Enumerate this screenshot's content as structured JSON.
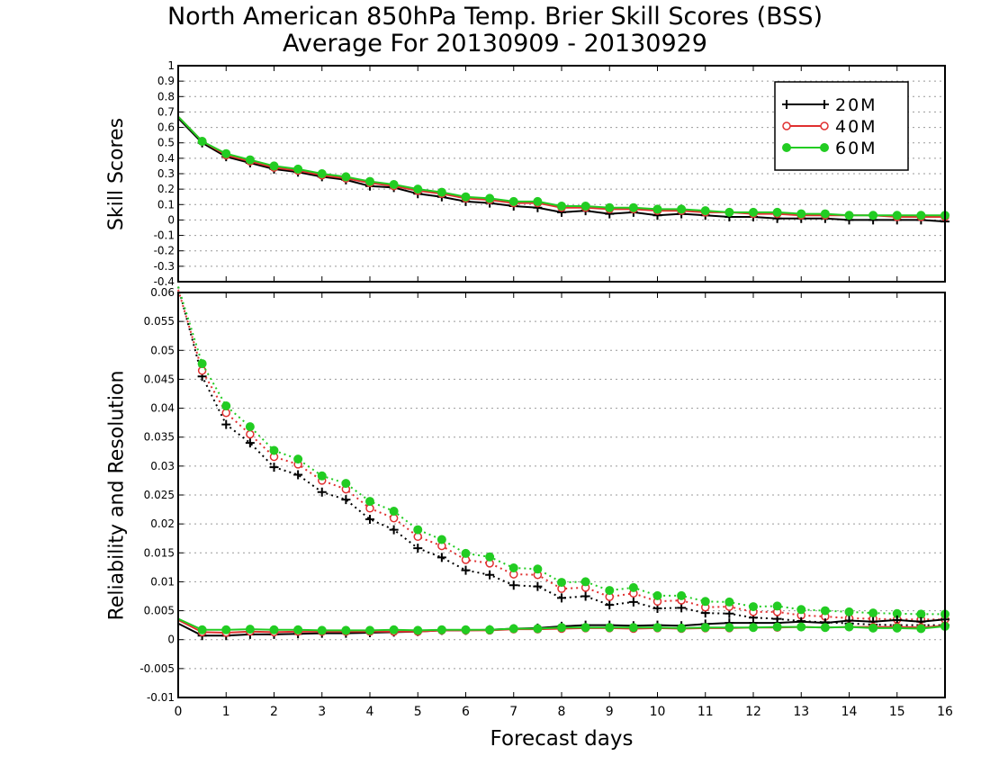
{
  "title": {
    "line1": "North American 850hPa Temp. Brier Skill Scores (BSS)",
    "line2": "Average For 20130909 - 20130929"
  },
  "xlabel": "Forecast days",
  "colors": {
    "20M": "#000000",
    "40M": "#e03030",
    "60M": "#22cc22",
    "grid": "#999999"
  },
  "chart_data": [
    {
      "type": "line",
      "ylabel": "Skill Scores",
      "xlim": [
        0,
        16
      ],
      "ylim": [
        -0.4,
        1
      ],
      "x_ticks": [
        "0",
        "1",
        "2",
        "3",
        "4",
        "5",
        "6",
        "7",
        "8",
        "9",
        "10",
        "11",
        "12",
        "13",
        "14",
        "15",
        "16"
      ],
      "y_ticks": [
        "1",
        "0.9",
        "0.8",
        "0.7",
        "0.6",
        "0.5",
        "0.4",
        "0.3",
        "0.2",
        "0.1",
        "0",
        "-0.1",
        "-0.2",
        "-0.3",
        "-0.4"
      ],
      "grid": "horizontal dotted",
      "legend_position": "top-right",
      "x": [
        0,
        0.5,
        1,
        1.5,
        2,
        2.5,
        3,
        3.5,
        4,
        4.5,
        5,
        5.5,
        6,
        6.5,
        7,
        7.5,
        8,
        8.5,
        9,
        9.5,
        10,
        10.5,
        11,
        11.5,
        12,
        12.5,
        13,
        13.5,
        14,
        14.5,
        15,
        15.5,
        16
      ],
      "series": [
        {
          "name": "20M",
          "marker": "plus",
          "line": "solid",
          "values": [
            0.66,
            0.5,
            0.41,
            0.37,
            0.33,
            0.31,
            0.28,
            0.26,
            0.22,
            0.21,
            0.17,
            0.15,
            0.12,
            0.11,
            0.09,
            0.08,
            0.05,
            0.06,
            0.04,
            0.05,
            0.03,
            0.04,
            0.03,
            0.02,
            0.02,
            0.01,
            0.01,
            0.01,
            0.0,
            0.0,
            0.0,
            0.0,
            -0.01
          ]
        },
        {
          "name": "40M",
          "marker": "open-circle",
          "line": "solid",
          "values": [
            0.67,
            0.51,
            0.42,
            0.38,
            0.34,
            0.32,
            0.29,
            0.27,
            0.24,
            0.22,
            0.19,
            0.17,
            0.14,
            0.13,
            0.11,
            0.11,
            0.08,
            0.08,
            0.07,
            0.07,
            0.06,
            0.06,
            0.05,
            0.05,
            0.04,
            0.04,
            0.03,
            0.03,
            0.03,
            0.03,
            0.02,
            0.02,
            0.02
          ]
        },
        {
          "name": "60M",
          "marker": "filled-circle",
          "line": "solid",
          "values": [
            0.67,
            0.51,
            0.43,
            0.39,
            0.35,
            0.33,
            0.3,
            0.28,
            0.25,
            0.23,
            0.2,
            0.18,
            0.15,
            0.14,
            0.12,
            0.12,
            0.09,
            0.09,
            0.08,
            0.08,
            0.07,
            0.07,
            0.06,
            0.05,
            0.05,
            0.05,
            0.04,
            0.04,
            0.03,
            0.03,
            0.03,
            0.03,
            0.03
          ]
        }
      ]
    },
    {
      "type": "line",
      "ylabel": "Reliability and Resolution",
      "xlim": [
        0,
        16
      ],
      "ylim": [
        -0.01,
        0.06
      ],
      "x_ticks": [
        "0",
        "1",
        "2",
        "3",
        "4",
        "5",
        "6",
        "7",
        "8",
        "9",
        "10",
        "11",
        "12",
        "13",
        "14",
        "15",
        "16"
      ],
      "y_ticks": [
        "0.06",
        "0.055",
        "0.05",
        "0.045",
        "0.04",
        "0.035",
        "0.03",
        "0.025",
        "0.02",
        "0.015",
        "0.01",
        "0.005",
        "0",
        "-0.005",
        "-0.01"
      ],
      "grid": "horizontal dotted",
      "x": [
        0,
        0.5,
        1,
        1.5,
        2,
        2.5,
        3,
        3.5,
        4,
        4.5,
        5,
        5.5,
        6,
        6.5,
        7,
        7.5,
        8,
        8.5,
        9,
        9.5,
        10,
        10.5,
        11,
        11.5,
        12,
        12.5,
        13,
        13.5,
        14,
        14.5,
        15,
        15.5,
        16
      ],
      "series": [
        {
          "name": "20M",
          "kind": "resolution",
          "marker": "plus",
          "line": "dotted",
          "values": [
            0.061,
            0.0455,
            0.0372,
            0.034,
            0.0298,
            0.0285,
            0.0255,
            0.0242,
            0.0208,
            0.019,
            0.0158,
            0.0142,
            0.012,
            0.0112,
            0.0094,
            0.0092,
            0.0072,
            0.0075,
            0.006,
            0.0065,
            0.0054,
            0.0055,
            0.0046,
            0.0045,
            0.0038,
            0.0036,
            0.0032,
            0.003,
            0.0028,
            0.0026,
            0.0025,
            0.0025,
            0.0025
          ]
        },
        {
          "name": "40M",
          "kind": "resolution",
          "marker": "open-circle",
          "line": "dotted",
          "values": [
            0.0605,
            0.0465,
            0.0392,
            0.0355,
            0.0316,
            0.0303,
            0.0275,
            0.026,
            0.0227,
            0.021,
            0.0178,
            0.0162,
            0.0138,
            0.0132,
            0.0113,
            0.0112,
            0.0088,
            0.009,
            0.0074,
            0.008,
            0.0066,
            0.0068,
            0.0056,
            0.0057,
            0.0048,
            0.0048,
            0.0042,
            0.004,
            0.0037,
            0.0036,
            0.0035,
            0.0035,
            0.0035
          ]
        },
        {
          "name": "60M",
          "kind": "resolution",
          "marker": "filled-circle",
          "line": "dotted",
          "values": [
            0.061,
            0.0477,
            0.0404,
            0.0368,
            0.0327,
            0.0312,
            0.0283,
            0.027,
            0.0239,
            0.0222,
            0.019,
            0.0173,
            0.0149,
            0.0143,
            0.0124,
            0.0122,
            0.0099,
            0.01,
            0.0085,
            0.009,
            0.0076,
            0.0076,
            0.0066,
            0.0065,
            0.0057,
            0.0058,
            0.0052,
            0.005,
            0.0048,
            0.0046,
            0.0045,
            0.0044,
            0.0044
          ]
        },
        {
          "name": "20M",
          "kind": "reliability",
          "marker": "plus",
          "line": "solid",
          "values": [
            0.0028,
            0.0007,
            0.0007,
            0.0009,
            0.0009,
            0.001,
            0.0011,
            0.0011,
            0.0012,
            0.0013,
            0.0014,
            0.0016,
            0.0016,
            0.0017,
            0.0019,
            0.002,
            0.0023,
            0.0025,
            0.0025,
            0.0024,
            0.0025,
            0.0024,
            0.0027,
            0.0029,
            0.0029,
            0.0029,
            0.0031,
            0.0029,
            0.0033,
            0.0031,
            0.0034,
            0.0031,
            0.0035
          ]
        },
        {
          "name": "40M",
          "kind": "reliability",
          "marker": "open-circle",
          "line": "solid",
          "values": [
            0.0034,
            0.0013,
            0.0012,
            0.0014,
            0.0013,
            0.0014,
            0.0014,
            0.0014,
            0.0014,
            0.0014,
            0.0014,
            0.0016,
            0.0016,
            0.0016,
            0.0018,
            0.0018,
            0.0019,
            0.002,
            0.002,
            0.0019,
            0.002,
            0.0019,
            0.002,
            0.002,
            0.0021,
            0.0021,
            0.0022,
            0.0021,
            0.0022,
            0.0022,
            0.0022,
            0.0021,
            0.0024
          ]
        },
        {
          "name": "60M",
          "kind": "reliability",
          "marker": "filled-circle",
          "line": "solid",
          "values": [
            0.0036,
            0.0017,
            0.0017,
            0.0018,
            0.0017,
            0.0017,
            0.0016,
            0.0016,
            0.0016,
            0.0017,
            0.0016,
            0.0017,
            0.0017,
            0.0017,
            0.0019,
            0.0019,
            0.0021,
            0.0021,
            0.0021,
            0.0021,
            0.0021,
            0.002,
            0.0021,
            0.0021,
            0.0021,
            0.0022,
            0.0022,
            0.0021,
            0.0022,
            0.002,
            0.002,
            0.0019,
            0.0023
          ]
        }
      ]
    }
  ]
}
